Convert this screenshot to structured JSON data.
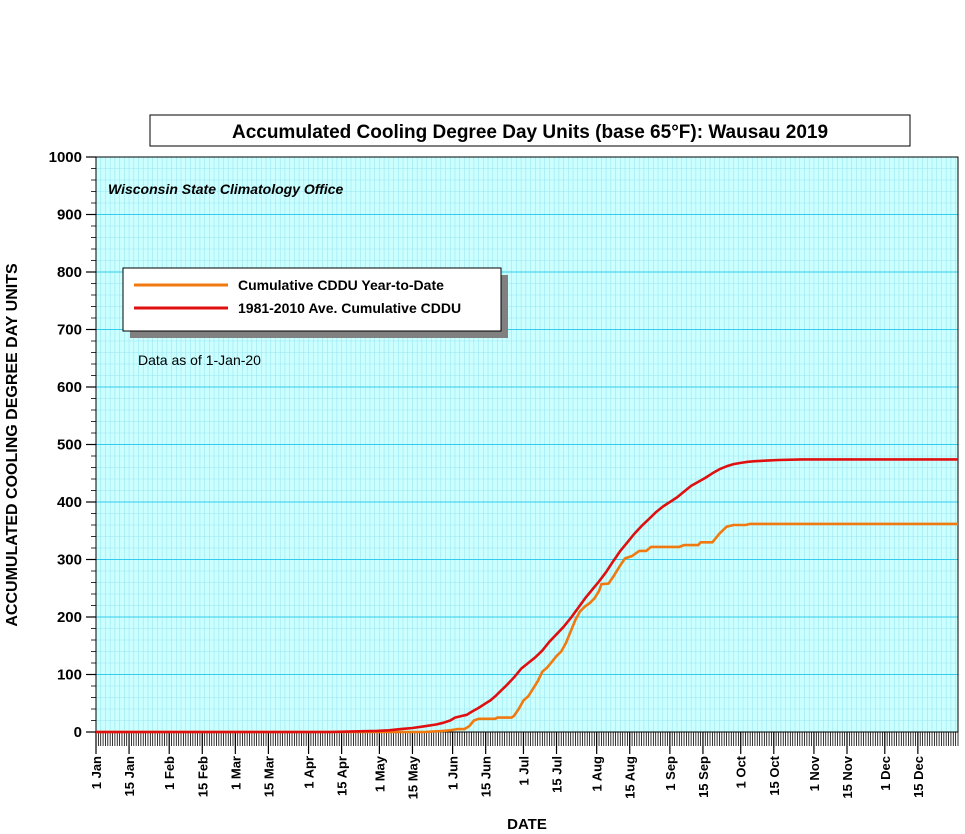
{
  "chart_data": {
    "type": "line",
    "title": "Accumulated Cooling Degree Day Units (base 65°F): Wausau 2019",
    "subtitle": "Wisconsin State Climatology Office",
    "annotation": "Data as of 1-Jan-20",
    "xlabel": "DATE",
    "ylabel": "ACCUMULATED COOLING DEGREE DAY UNITS",
    "x_type": "day_of_year",
    "xlim": [
      1,
      366
    ],
    "ylim": [
      0,
      1000
    ],
    "yticks": [
      0,
      100,
      200,
      300,
      400,
      500,
      600,
      700,
      800,
      900,
      1000
    ],
    "grid": true,
    "legend_position": "top-left",
    "background_color": "#ccffff",
    "grid_major_color": "#33ccee",
    "grid_minor_color": "#99e6f2",
    "x_tick_labels": [
      {
        "day": 1,
        "label": "1 Jan"
      },
      {
        "day": 15,
        "label": "15 Jan"
      },
      {
        "day": 32,
        "label": "1 Feb"
      },
      {
        "day": 46,
        "label": "15 Feb"
      },
      {
        "day": 60,
        "label": "1 Mar"
      },
      {
        "day": 74,
        "label": "15 Mar"
      },
      {
        "day": 91,
        "label": "1 Apr"
      },
      {
        "day": 105,
        "label": "15 Apr"
      },
      {
        "day": 121,
        "label": "1 May"
      },
      {
        "day": 135,
        "label": "15 May"
      },
      {
        "day": 152,
        "label": "1 Jun"
      },
      {
        "day": 166,
        "label": "15 Jun"
      },
      {
        "day": 182,
        "label": "1 Jul"
      },
      {
        "day": 196,
        "label": "15 Jul"
      },
      {
        "day": 213,
        "label": "1 Aug"
      },
      {
        "day": 227,
        "label": "15 Aug"
      },
      {
        "day": 244,
        "label": "1 Sep"
      },
      {
        "day": 258,
        "label": "15 Sep"
      },
      {
        "day": 274,
        "label": "1 Oct"
      },
      {
        "day": 288,
        "label": "15 Oct"
      },
      {
        "day": 305,
        "label": "1 Nov"
      },
      {
        "day": 319,
        "label": "15 Nov"
      },
      {
        "day": 335,
        "label": "1 Dec"
      },
      {
        "day": 349,
        "label": "15 Dec"
      }
    ],
    "series": [
      {
        "name": "Cumulative CDDU Year-to-Date",
        "color": "#f07a10",
        "points": [
          [
            1,
            0
          ],
          [
            120,
            0
          ],
          [
            140,
            0
          ],
          [
            148,
            2
          ],
          [
            151,
            3
          ],
          [
            154,
            5
          ],
          [
            157,
            5
          ],
          [
            159,
            10
          ],
          [
            161,
            20
          ],
          [
            163,
            23
          ],
          [
            168,
            23
          ],
          [
            170,
            23
          ],
          [
            171,
            25
          ],
          [
            177,
            25
          ],
          [
            178,
            28
          ],
          [
            180,
            40
          ],
          [
            182,
            55
          ],
          [
            184,
            62
          ],
          [
            186,
            75
          ],
          [
            188,
            88
          ],
          [
            190,
            105
          ],
          [
            192,
            112
          ],
          [
            194,
            122
          ],
          [
            196,
            132
          ],
          [
            198,
            140
          ],
          [
            200,
            155
          ],
          [
            202,
            175
          ],
          [
            204,
            195
          ],
          [
            206,
            210
          ],
          [
            208,
            218
          ],
          [
            210,
            224
          ],
          [
            212,
            232
          ],
          [
            214,
            245
          ],
          [
            215,
            257
          ],
          [
            218,
            258
          ],
          [
            220,
            270
          ],
          [
            223,
            290
          ],
          [
            225,
            302
          ],
          [
            228,
            306
          ],
          [
            231,
            315
          ],
          [
            234,
            315
          ],
          [
            236,
            322
          ],
          [
            243,
            322
          ],
          [
            248,
            322
          ],
          [
            250,
            325
          ],
          [
            256,
            325
          ],
          [
            257,
            330
          ],
          [
            262,
            330
          ],
          [
            265,
            345
          ],
          [
            268,
            357
          ],
          [
            271,
            360
          ],
          [
            276,
            360
          ],
          [
            278,
            362
          ],
          [
            366,
            362
          ]
        ]
      },
      {
        "name": "1981-2010 Ave. Cumulative CDDU",
        "color": "#e01010",
        "points": [
          [
            1,
            0
          ],
          [
            100,
            0
          ],
          [
            110,
            1
          ],
          [
            120,
            2
          ],
          [
            125,
            3
          ],
          [
            130,
            5
          ],
          [
            135,
            7
          ],
          [
            140,
            10
          ],
          [
            145,
            13
          ],
          [
            148,
            16
          ],
          [
            151,
            20
          ],
          [
            153,
            25
          ],
          [
            156,
            28
          ],
          [
            158,
            30
          ],
          [
            160,
            35
          ],
          [
            163,
            42
          ],
          [
            166,
            50
          ],
          [
            168,
            55
          ],
          [
            170,
            62
          ],
          [
            172,
            70
          ],
          [
            175,
            82
          ],
          [
            178,
            95
          ],
          [
            181,
            110
          ],
          [
            184,
            120
          ],
          [
            187,
            130
          ],
          [
            190,
            142
          ],
          [
            193,
            157
          ],
          [
            196,
            170
          ],
          [
            199,
            183
          ],
          [
            202,
            198
          ],
          [
            205,
            215
          ],
          [
            208,
            232
          ],
          [
            211,
            247
          ],
          [
            214,
            262
          ],
          [
            217,
            278
          ],
          [
            220,
            297
          ],
          [
            223,
            315
          ],
          [
            226,
            330
          ],
          [
            229,
            345
          ],
          [
            232,
            358
          ],
          [
            235,
            370
          ],
          [
            238,
            382
          ],
          [
            241,
            392
          ],
          [
            244,
            400
          ],
          [
            247,
            408
          ],
          [
            250,
            418
          ],
          [
            253,
            428
          ],
          [
            256,
            435
          ],
          [
            259,
            442
          ],
          [
            262,
            450
          ],
          [
            265,
            457
          ],
          [
            268,
            462
          ],
          [
            271,
            466
          ],
          [
            274,
            468
          ],
          [
            277,
            470
          ],
          [
            280,
            471
          ],
          [
            285,
            472
          ],
          [
            290,
            473
          ],
          [
            300,
            474
          ],
          [
            366,
            474
          ]
        ]
      }
    ]
  }
}
